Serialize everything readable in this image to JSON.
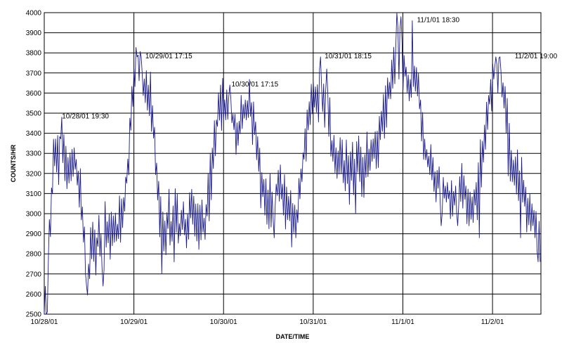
{
  "chart_data": {
    "type": "line",
    "title": "",
    "xlabel": "DATE/TIME",
    "ylabel": "COUNTS/HR",
    "ylim": [
      2500,
      4000
    ],
    "y_ticks": [
      2500,
      2600,
      2700,
      2800,
      2900,
      3000,
      3100,
      3200,
      3300,
      3400,
      3500,
      3600,
      3700,
      3800,
      3900,
      4000
    ],
    "x_ticks": [
      {
        "label": "10/28/01",
        "day": 0
      },
      {
        "label": "10/29/01",
        "day": 1
      },
      {
        "label": "10/30/01",
        "day": 2
      },
      {
        "label": "10/31/01",
        "day": 3
      },
      {
        "label": "11/1/01",
        "day": 4
      },
      {
        "label": "11/2/01",
        "day": 5
      }
    ],
    "xlim_days": [
      0,
      5.54
    ],
    "grid": true,
    "line_color": "#1a1a8c",
    "anchors": [
      [
        0.0,
        2500
      ],
      [
        0.03,
        2510
      ],
      [
        0.04,
        2920
      ],
      [
        0.06,
        2880
      ],
      [
        0.09,
        3150
      ],
      [
        0.12,
        3300
      ],
      [
        0.16,
        3200
      ],
      [
        0.19,
        3460
      ],
      [
        0.23,
        3260
      ],
      [
        0.28,
        3200
      ],
      [
        0.33,
        3300
      ],
      [
        0.37,
        3180
      ],
      [
        0.41,
        3100
      ],
      [
        0.45,
        2850
      ],
      [
        0.49,
        2700
      ],
      [
        0.53,
        2850
      ],
      [
        0.57,
        2780
      ],
      [
        0.61,
        2900
      ],
      [
        0.65,
        2780
      ],
      [
        0.69,
        2950
      ],
      [
        0.74,
        2860
      ],
      [
        0.78,
        2950
      ],
      [
        0.82,
        2900
      ],
      [
        0.86,
        2980
      ],
      [
        0.9,
        3050
      ],
      [
        0.94,
        3300
      ],
      [
        0.98,
        3550
      ],
      [
        1.02,
        3700
      ],
      [
        1.06,
        3720
      ],
      [
        1.1,
        3650
      ],
      [
        1.14,
        3600
      ],
      [
        1.18,
        3550
      ],
      [
        1.22,
        3400
      ],
      [
        1.26,
        3150
      ],
      [
        1.3,
        2980
      ],
      [
        1.34,
        2900
      ],
      [
        1.38,
        3000
      ],
      [
        1.42,
        2920
      ],
      [
        1.46,
        3000
      ],
      [
        1.5,
        2920
      ],
      [
        1.54,
        2950
      ],
      [
        1.58,
        2900
      ],
      [
        1.62,
        3000
      ],
      [
        1.66,
        3050
      ],
      [
        1.7,
        3000
      ],
      [
        1.74,
        2950
      ],
      [
        1.78,
        2950
      ],
      [
        1.82,
        3050
      ],
      [
        1.86,
        3200
      ],
      [
        1.9,
        3380
      ],
      [
        1.94,
        3480
      ],
      [
        1.98,
        3550
      ],
      [
        2.02,
        3500
      ],
      [
        2.06,
        3560
      ],
      [
        2.1,
        3480
      ],
      [
        2.14,
        3400
      ],
      [
        2.18,
        3450
      ],
      [
        2.22,
        3480
      ],
      [
        2.26,
        3540
      ],
      [
        2.3,
        3560
      ],
      [
        2.34,
        3450
      ],
      [
        2.38,
        3300
      ],
      [
        2.42,
        3150
      ],
      [
        2.46,
        3100
      ],
      [
        2.5,
        3050
      ],
      [
        2.54,
        3000
      ],
      [
        2.58,
        3080
      ],
      [
        2.62,
        3150
      ],
      [
        2.66,
        3100
      ],
      [
        2.7,
        3050
      ],
      [
        2.74,
        3000
      ],
      [
        2.78,
        2950
      ],
      [
        2.82,
        2980
      ],
      [
        2.86,
        3150
      ],
      [
        2.9,
        3300
      ],
      [
        2.94,
        3450
      ],
      [
        2.98,
        3550
      ],
      [
        3.02,
        3580
      ],
      [
        3.06,
        3600
      ],
      [
        3.1,
        3580
      ],
      [
        3.14,
        3550
      ],
      [
        3.18,
        3420
      ],
      [
        3.22,
        3300
      ],
      [
        3.26,
        3260
      ],
      [
        3.3,
        3230
      ],
      [
        3.34,
        3250
      ],
      [
        3.38,
        3200
      ],
      [
        3.42,
        3250
      ],
      [
        3.46,
        3220
      ],
      [
        3.5,
        3250
      ],
      [
        3.54,
        3230
      ],
      [
        3.58,
        3220
      ],
      [
        3.62,
        3260
      ],
      [
        3.66,
        3300
      ],
      [
        3.7,
        3350
      ],
      [
        3.74,
        3400
      ],
      [
        3.78,
        3500
      ],
      [
        3.82,
        3550
      ],
      [
        3.86,
        3650
      ],
      [
        3.9,
        3720
      ],
      [
        3.94,
        3780
      ],
      [
        3.98,
        3750
      ],
      [
        4.02,
        3720
      ],
      [
        4.06,
        3640
      ],
      [
        4.1,
        3620
      ],
      [
        4.14,
        3700
      ],
      [
        4.18,
        3600
      ],
      [
        4.22,
        3380
      ],
      [
        4.26,
        3300
      ],
      [
        4.3,
        3250
      ],
      [
        4.34,
        3200
      ],
      [
        4.38,
        3150
      ],
      [
        4.42,
        3160
      ],
      [
        4.46,
        3130
      ],
      [
        4.5,
        3100
      ],
      [
        4.54,
        3050
      ],
      [
        4.58,
        3080
      ],
      [
        4.62,
        3120
      ],
      [
        4.66,
        3150
      ],
      [
        4.7,
        3100
      ],
      [
        4.74,
        3050
      ],
      [
        4.78,
        3000
      ],
      [
        4.82,
        3100
      ],
      [
        4.86,
        3200
      ],
      [
        4.9,
        3350
      ],
      [
        4.94,
        3500
      ],
      [
        4.98,
        3620
      ],
      [
        5.02,
        3700
      ],
      [
        5.06,
        3680
      ],
      [
        5.1,
        3650
      ],
      [
        5.14,
        3500
      ],
      [
        5.18,
        3350
      ],
      [
        5.22,
        3220
      ],
      [
        5.26,
        3200
      ],
      [
        5.3,
        3150
      ],
      [
        5.34,
        3100
      ],
      [
        5.38,
        3050
      ],
      [
        5.42,
        3000
      ],
      [
        5.46,
        2950
      ],
      [
        5.5,
        2900
      ],
      [
        5.54,
        3100
      ]
    ],
    "min_dips": [
      [
        0.02,
        2500
      ],
      [
        0.04,
        2510
      ],
      [
        0.47,
        2640
      ],
      [
        0.66,
        2640
      ],
      [
        1.31,
        2700
      ],
      [
        1.45,
        2760
      ],
      [
        2.57,
        2880
      ],
      [
        2.81,
        2880
      ],
      [
        3.47,
        3000
      ],
      [
        4.43,
        2940
      ],
      [
        4.61,
        2940
      ],
      [
        4.85,
        2880
      ],
      [
        5.31,
        2880
      ],
      [
        5.51,
        2760
      ],
      [
        5.53,
        2760
      ]
    ],
    "max_peaks": [
      [
        0.2,
        3480
      ],
      [
        1.04,
        3780
      ],
      [
        1.08,
        3780
      ],
      [
        2.07,
        3640
      ],
      [
        3.08,
        3780
      ],
      [
        3.15,
        3720
      ],
      [
        3.93,
        4000
      ],
      [
        3.98,
        3980
      ],
      [
        4.11,
        3960
      ],
      [
        5.04,
        3780
      ],
      [
        5.08,
        3780
      ]
    ],
    "annotations": [
      {
        "text": "10/28/01 19:30",
        "day": 0.19,
        "value": 3480
      },
      {
        "text": "10/29/01 17:15",
        "day": 1.12,
        "value": 3780
      },
      {
        "text": "10/30/01 17:15",
        "day": 2.08,
        "value": 3640
      },
      {
        "text": "10/31/01 18:15",
        "day": 3.12,
        "value": 3780
      },
      {
        "text": "11/1/01 18:30",
        "day": 4.15,
        "value": 3960
      },
      {
        "text": "11/2/01 19:00",
        "day": 5.24,
        "value": 3780
      }
    ]
  }
}
